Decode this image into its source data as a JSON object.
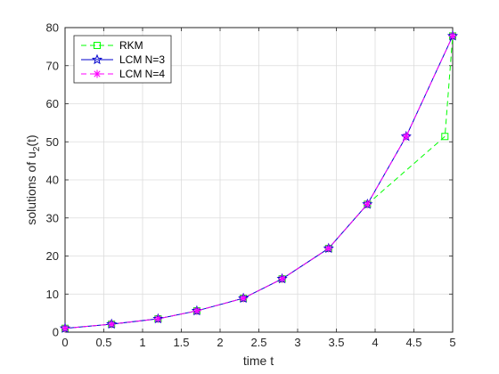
{
  "chart_data": {
    "type": "line",
    "xlabel": "time t",
    "ylabel_main": "solutions of u",
    "ylabel_sub": "2",
    "ylabel_tail": "(t)",
    "xlim": [
      0,
      5
    ],
    "ylim": [
      0,
      80
    ],
    "xticks": [
      0,
      0.5,
      1,
      1.5,
      2,
      2.5,
      3,
      3.5,
      4,
      4.5,
      5
    ],
    "yticks": [
      0,
      10,
      20,
      30,
      40,
      50,
      60,
      70,
      80
    ],
    "grid": true,
    "legend_position": "top-left",
    "series": [
      {
        "name": "RKM",
        "color": "#00ff00",
        "line_style": "dashed",
        "marker": "square",
        "x": [
          0,
          0.6,
          1.2,
          1.7,
          2.3,
          2.8,
          3.4,
          3.9,
          4.9,
          5.0
        ],
        "y": [
          1.0,
          2.1,
          3.5,
          5.6,
          8.9,
          14.0,
          22.0,
          33.6,
          51.4,
          77.8
        ]
      },
      {
        "name": "LCM N=3",
        "color": "#0000cc",
        "line_style": "solid",
        "marker": "star",
        "x": [
          0,
          0.6,
          1.2,
          1.7,
          2.3,
          2.8,
          3.4,
          3.9,
          4.4,
          5.0
        ],
        "y": [
          1.0,
          2.1,
          3.5,
          5.6,
          8.9,
          14.0,
          22.0,
          33.6,
          51.4,
          77.8
        ]
      },
      {
        "name": "LCM N=4",
        "color": "#ff00ff",
        "line_style": "dashed",
        "marker": "asterisk",
        "x": [
          0,
          0.6,
          1.2,
          1.7,
          2.3,
          2.8,
          3.4,
          3.9,
          4.4,
          5.0
        ],
        "y": [
          1.0,
          2.1,
          3.5,
          5.6,
          8.9,
          14.0,
          22.0,
          33.6,
          51.4,
          77.8
        ]
      }
    ]
  }
}
